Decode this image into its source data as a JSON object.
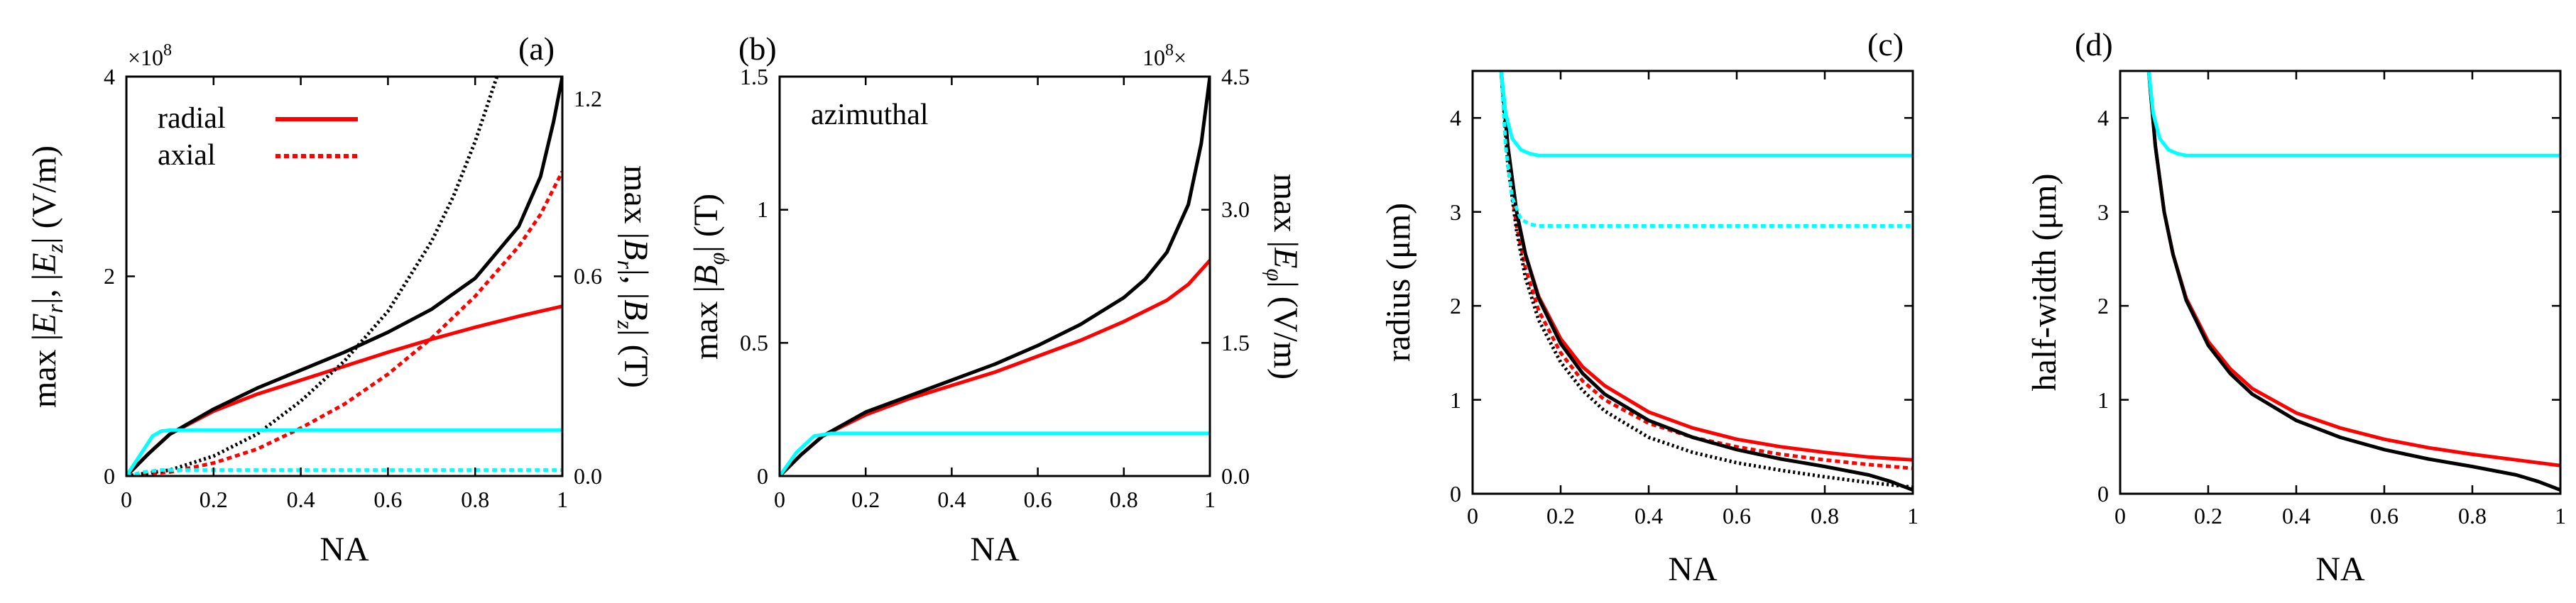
{
  "figure": {
    "colors": {
      "red": "#ff0000",
      "cyan": "#00ffff",
      "black": "#000000"
    }
  },
  "chart_data": [
    {
      "panel": "a",
      "type": "line",
      "panel_label": "(a)",
      "xlabel": "NA",
      "ylabel_left": "max |E_r|, |E_z| (V/m)",
      "ylabel_right": "max |B_r|, |B_z| (T)",
      "left_multiplier": "×10^8",
      "xlim": [
        0,
        1
      ],
      "ylim_left": [
        0,
        4
      ],
      "ylim_right": [
        0,
        1.2
      ],
      "xticks": [
        "0",
        "0.2",
        "0.4",
        "0.6",
        "0.8",
        "1"
      ],
      "yticks_left": [
        "0",
        "2",
        "4"
      ],
      "yticks_right": [
        "0.0",
        "0.6",
        "1.2"
      ],
      "legend": {
        "position": "top-left",
        "entries": [
          {
            "label": "radial",
            "style": "solid",
            "color": "#ff0000"
          },
          {
            "label": "axial",
            "style": "dotted",
            "color": "#ff0000"
          }
        ]
      },
      "series": [
        {
          "name": "max |E_r| radial (red solid)",
          "axis": "left",
          "color": "#ff0000",
          "style": "solid",
          "width": 6,
          "x": [
            0,
            0.05,
            0.1,
            0.2,
            0.3,
            0.4,
            0.5,
            0.6,
            0.7,
            0.8,
            0.9,
            1.0
          ],
          "y": [
            0,
            0.22,
            0.42,
            0.65,
            0.82,
            0.96,
            1.1,
            1.24,
            1.37,
            1.49,
            1.6,
            1.7
          ]
        },
        {
          "name": "max |E_z| axial (red dotted)",
          "axis": "left",
          "color": "#ff0000",
          "style": "dotted",
          "width": 6,
          "x": [
            0,
            0.1,
            0.2,
            0.3,
            0.4,
            0.5,
            0.6,
            0.7,
            0.8,
            0.9,
            0.95,
            1.0
          ],
          "y": [
            0,
            0.04,
            0.13,
            0.27,
            0.48,
            0.72,
            1.02,
            1.38,
            1.8,
            2.3,
            2.62,
            3.05
          ]
        },
        {
          "name": "E_r radial (black solid)",
          "axis": "left",
          "color": "#000000",
          "style": "solid",
          "width": 3.5,
          "x": [
            0,
            0.05,
            0.1,
            0.2,
            0.3,
            0.4,
            0.5,
            0.6,
            0.7,
            0.8,
            0.9,
            0.95,
            0.98,
            1.0
          ],
          "y": [
            0,
            0.22,
            0.42,
            0.67,
            0.88,
            1.06,
            1.24,
            1.44,
            1.67,
            1.98,
            2.5,
            3.0,
            3.55,
            4.0
          ]
        },
        {
          "name": "E_z axial (black dotted)",
          "axis": "left",
          "color": "#000000",
          "style": "dotted",
          "width": 3.5,
          "x": [
            0,
            0.1,
            0.2,
            0.3,
            0.4,
            0.5,
            0.6,
            0.7,
            0.75,
            0.8,
            0.85
          ],
          "y": [
            0,
            0.06,
            0.2,
            0.42,
            0.75,
            1.15,
            1.65,
            2.35,
            2.8,
            3.35,
            4.0
          ]
        },
        {
          "name": "max |B_r| (cyan solid)",
          "axis": "right",
          "color": "#00ffff",
          "style": "solid",
          "width": 5,
          "x": [
            0,
            0.02,
            0.04,
            0.06,
            0.08,
            0.1,
            0.2,
            0.4,
            0.6,
            0.8,
            1.0
          ],
          "y": [
            0,
            0.04,
            0.08,
            0.12,
            0.135,
            0.138,
            0.138,
            0.138,
            0.138,
            0.138,
            0.138
          ]
        },
        {
          "name": "max |B_z| (cyan dotted)",
          "axis": "right",
          "color": "#00ffff",
          "style": "dotted",
          "width": 5,
          "x": [
            0,
            0.04,
            0.08,
            0.12,
            0.3,
            0.5,
            0.7,
            0.9,
            1.0
          ],
          "y": [
            0,
            0.012,
            0.018,
            0.018,
            0.018,
            0.018,
            0.018,
            0.018,
            0.018
          ]
        }
      ]
    },
    {
      "panel": "b",
      "type": "line",
      "panel_label": "(b)",
      "xlabel": "NA",
      "ylabel_left": "max |B_φ| (T)",
      "ylabel_right": "max |E_φ| (V/m)",
      "right_multiplier": "10^8×",
      "annotation": "azimuthal",
      "xlim": [
        0,
        1
      ],
      "ylim_left": [
        0,
        1.5
      ],
      "ylim_right": [
        0,
        4.5
      ],
      "xticks": [
        "0",
        "0.2",
        "0.4",
        "0.6",
        "0.8",
        "1"
      ],
      "yticks_left": [
        "0",
        "0.5",
        "1",
        "1.5"
      ],
      "yticks_right": [
        "0.0",
        "1.5",
        "3.0",
        "4.5"
      ],
      "series": [
        {
          "name": "max |B_φ| (red)",
          "axis": "left",
          "color": "#ff0000",
          "style": "solid",
          "width": 6,
          "x": [
            0,
            0.05,
            0.1,
            0.2,
            0.3,
            0.4,
            0.5,
            0.6,
            0.7,
            0.8,
            0.9,
            0.95,
            1.0
          ],
          "y": [
            0,
            0.08,
            0.15,
            0.23,
            0.29,
            0.34,
            0.39,
            0.45,
            0.51,
            0.58,
            0.66,
            0.72,
            0.81
          ]
        },
        {
          "name": "E_φ (black)",
          "axis": "left",
          "color": "#000000",
          "style": "solid",
          "width": 3.5,
          "x": [
            0,
            0.05,
            0.1,
            0.2,
            0.3,
            0.4,
            0.5,
            0.6,
            0.7,
            0.8,
            0.85,
            0.9,
            0.95,
            0.98,
            1.0
          ],
          "y": [
            0,
            0.08,
            0.15,
            0.24,
            0.3,
            0.36,
            0.42,
            0.49,
            0.57,
            0.67,
            0.74,
            0.84,
            1.02,
            1.25,
            1.5
          ]
        },
        {
          "name": "cyan",
          "axis": "left",
          "color": "#00ffff",
          "style": "solid",
          "width": 5,
          "x": [
            0,
            0.04,
            0.08,
            0.12,
            0.2,
            0.4,
            0.6,
            0.8,
            1.0
          ],
          "y": [
            0,
            0.09,
            0.15,
            0.16,
            0.16,
            0.16,
            0.16,
            0.16,
            0.16
          ]
        }
      ]
    },
    {
      "panel": "c",
      "type": "line",
      "panel_label": "(c)",
      "xlabel": "NA",
      "ylabel": "radius (μm)",
      "xlim": [
        0,
        1
      ],
      "ylim": [
        0,
        4.5
      ],
      "xticks": [
        "0",
        "0.2",
        "0.4",
        "0.6",
        "0.8",
        "1"
      ],
      "yticks": [
        "0",
        "1",
        "2",
        "3",
        "4"
      ],
      "series": [
        {
          "name": "radial (red solid)",
          "color": "#ff0000",
          "style": "solid",
          "width": 6,
          "x": [
            0.065,
            0.08,
            0.1,
            0.12,
            0.15,
            0.2,
            0.25,
            0.3,
            0.4,
            0.5,
            0.6,
            0.7,
            0.8,
            0.9,
            1.0
          ],
          "y": [
            4.5,
            3.7,
            3.0,
            2.55,
            2.1,
            1.65,
            1.35,
            1.15,
            0.87,
            0.7,
            0.58,
            0.5,
            0.44,
            0.39,
            0.36
          ]
        },
        {
          "name": "axial (red dotted)",
          "color": "#ff0000",
          "style": "dotted",
          "width": 6,
          "x": [
            0.065,
            0.08,
            0.1,
            0.12,
            0.15,
            0.2,
            0.25,
            0.3,
            0.4,
            0.5,
            0.6,
            0.7,
            0.8,
            0.9,
            1.0
          ],
          "y": [
            4.5,
            3.55,
            2.85,
            2.4,
            1.95,
            1.5,
            1.2,
            1.0,
            0.75,
            0.6,
            0.5,
            0.42,
            0.36,
            0.31,
            0.27
          ]
        },
        {
          "name": "black solid",
          "color": "#000000",
          "style": "solid",
          "width": 3.5,
          "x": [
            0.065,
            0.08,
            0.1,
            0.12,
            0.15,
            0.2,
            0.25,
            0.3,
            0.4,
            0.5,
            0.6,
            0.7,
            0.8,
            0.9,
            0.95,
            1.0
          ],
          "y": [
            4.5,
            3.7,
            3.0,
            2.55,
            2.08,
            1.6,
            1.28,
            1.06,
            0.78,
            0.6,
            0.47,
            0.37,
            0.29,
            0.2,
            0.13,
            0.04
          ]
        },
        {
          "name": "black dotted",
          "color": "#000000",
          "style": "dotted",
          "width": 3.5,
          "x": [
            0.065,
            0.08,
            0.1,
            0.12,
            0.15,
            0.2,
            0.25,
            0.3,
            0.4,
            0.5,
            0.6,
            0.7,
            0.8,
            0.9,
            1.0
          ],
          "y": [
            4.5,
            3.5,
            2.8,
            2.3,
            1.85,
            1.4,
            1.1,
            0.88,
            0.6,
            0.44,
            0.33,
            0.25,
            0.18,
            0.12,
            0.07
          ]
        },
        {
          "name": "cyan solid",
          "color": "#00ffff",
          "style": "solid",
          "width": 5,
          "x": [
            0.065,
            0.075,
            0.09,
            0.11,
            0.13,
            0.15,
            0.2,
            0.4,
            0.6,
            0.8,
            1.0
          ],
          "y": [
            4.5,
            4.05,
            3.78,
            3.66,
            3.62,
            3.6,
            3.6,
            3.6,
            3.6,
            3.6,
            3.6
          ]
        },
        {
          "name": "cyan dotted",
          "color": "#00ffff",
          "style": "dotted",
          "width": 5,
          "x": [
            0.065,
            0.075,
            0.09,
            0.11,
            0.13,
            0.15,
            0.2,
            0.4,
            0.6,
            0.8,
            1.0
          ],
          "y": [
            4.5,
            3.7,
            3.15,
            2.92,
            2.87,
            2.85,
            2.85,
            2.85,
            2.85,
            2.85,
            2.85
          ]
        }
      ]
    },
    {
      "panel": "d",
      "type": "line",
      "panel_label": "(d)",
      "xlabel": "NA",
      "ylabel": "half-width (μm)",
      "xlim": [
        0,
        1
      ],
      "ylim": [
        0,
        4.5
      ],
      "xticks": [
        "0",
        "0.2",
        "0.4",
        "0.6",
        "0.8",
        "1"
      ],
      "yticks": [
        "0",
        "1",
        "2",
        "3",
        "4"
      ],
      "series": [
        {
          "name": "red",
          "color": "#ff0000",
          "style": "solid",
          "width": 6,
          "x": [
            0.065,
            0.08,
            0.1,
            0.12,
            0.15,
            0.2,
            0.25,
            0.3,
            0.4,
            0.5,
            0.6,
            0.7,
            0.8,
            0.9,
            1.0
          ],
          "y": [
            4.5,
            3.7,
            3.0,
            2.55,
            2.08,
            1.62,
            1.33,
            1.12,
            0.86,
            0.7,
            0.58,
            0.49,
            0.42,
            0.36,
            0.3
          ]
        },
        {
          "name": "black",
          "color": "#000000",
          "style": "solid",
          "width": 3.5,
          "x": [
            0.065,
            0.08,
            0.1,
            0.12,
            0.15,
            0.2,
            0.25,
            0.3,
            0.4,
            0.5,
            0.6,
            0.7,
            0.8,
            0.9,
            0.95,
            1.0
          ],
          "y": [
            4.5,
            3.7,
            3.0,
            2.55,
            2.06,
            1.58,
            1.28,
            1.06,
            0.78,
            0.6,
            0.47,
            0.37,
            0.29,
            0.2,
            0.13,
            0.04
          ]
        },
        {
          "name": "cyan",
          "color": "#00ffff",
          "style": "solid",
          "width": 5,
          "x": [
            0.065,
            0.075,
            0.09,
            0.11,
            0.13,
            0.15,
            0.2,
            0.4,
            0.6,
            0.8,
            1.0
          ],
          "y": [
            4.5,
            4.05,
            3.78,
            3.66,
            3.62,
            3.6,
            3.6,
            3.6,
            3.6,
            3.6,
            3.6
          ]
        }
      ]
    }
  ]
}
